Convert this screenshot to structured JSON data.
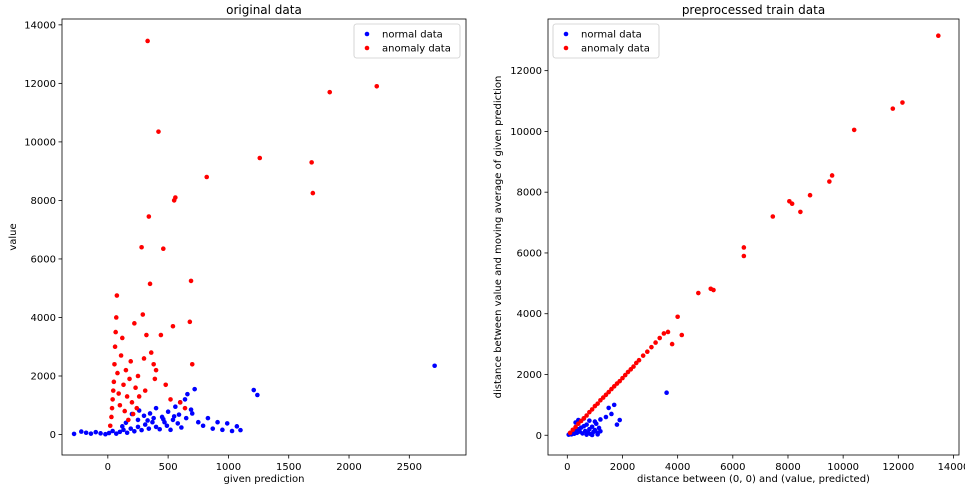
{
  "chart_data": [
    {
      "type": "scatter",
      "title": "original data",
      "xlabel": "given prediction",
      "ylabel": "value",
      "xlim": [
        -380,
        2970
      ],
      "ylim": [
        -700,
        14200
      ],
      "xticks": [
        0,
        500,
        1000,
        1500,
        2000,
        2500
      ],
      "yticks": [
        0,
        2000,
        4000,
        6000,
        8000,
        10000,
        12000,
        14000
      ],
      "legend_position": "top-right",
      "series": [
        {
          "name": "normal data",
          "color": "#0000ff",
          "points": [
            [
              -280,
              20
            ],
            [
              -220,
              100
            ],
            [
              -180,
              60
            ],
            [
              -140,
              30
            ],
            [
              -100,
              80
            ],
            [
              -60,
              40
            ],
            [
              -20,
              10
            ],
            [
              10,
              50
            ],
            [
              40,
              120
            ],
            [
              70,
              30
            ],
            [
              100,
              90
            ],
            [
              130,
              160
            ],
            [
              160,
              60
            ],
            [
              190,
              200
            ],
            [
              220,
              110
            ],
            [
              250,
              260
            ],
            [
              280,
              150
            ],
            [
              310,
              340
            ],
            [
              340,
              200
            ],
            [
              370,
              420
            ],
            [
              400,
              260
            ],
            [
              430,
              180
            ],
            [
              460,
              520
            ],
            [
              490,
              300
            ],
            [
              520,
              160
            ],
            [
              550,
              620
            ],
            [
              580,
              380
            ],
            [
              610,
              240
            ],
            [
              640,
              1200
            ],
            [
              660,
              1380
            ],
            [
              690,
              850
            ],
            [
              720,
              1550
            ],
            [
              750,
              420
            ],
            [
              790,
              300
            ],
            [
              830,
              560
            ],
            [
              870,
              200
            ],
            [
              910,
              420
            ],
            [
              950,
              160
            ],
            [
              990,
              380
            ],
            [
              1030,
              120
            ],
            [
              1070,
              280
            ],
            [
              1100,
              150
            ],
            [
              1210,
              1520
            ],
            [
              1240,
              1350
            ],
            [
              200,
              700
            ],
            [
              260,
              820
            ],
            [
              300,
              640
            ],
            [
              350,
              720
            ],
            [
              400,
              900
            ],
            [
              450,
              600
            ],
            [
              500,
              780
            ],
            [
              560,
              950
            ],
            [
              600,
              1100
            ],
            [
              150,
              400
            ],
            [
              120,
              280
            ],
            [
              250,
              500
            ],
            [
              330,
              480
            ],
            [
              380,
              560
            ],
            [
              470,
              420
            ],
            [
              540,
              500
            ],
            [
              590,
              680
            ],
            [
              650,
              560
            ],
            [
              700,
              720
            ],
            [
              2710,
              2350
            ]
          ]
        },
        {
          "name": "anomaly data",
          "color": "#ff0000",
          "points": [
            [
              20,
              300
            ],
            [
              30,
              600
            ],
            [
              35,
              900
            ],
            [
              40,
              1200
            ],
            [
              45,
              1500
            ],
            [
              50,
              1800
            ],
            [
              55,
              2400
            ],
            [
              60,
              3000
            ],
            [
              65,
              3500
            ],
            [
              70,
              4000
            ],
            [
              75,
              4750
            ],
            [
              80,
              2100
            ],
            [
              90,
              1400
            ],
            [
              100,
              1000
            ],
            [
              110,
              2700
            ],
            [
              120,
              3300
            ],
            [
              130,
              1700
            ],
            [
              140,
              800
            ],
            [
              150,
              2200
            ],
            [
              160,
              1300
            ],
            [
              170,
              500
            ],
            [
              180,
              1900
            ],
            [
              190,
              2500
            ],
            [
              200,
              1100
            ],
            [
              210,
              700
            ],
            [
              220,
              3800
            ],
            [
              230,
              1600
            ],
            [
              240,
              900
            ],
            [
              250,
              2000
            ],
            [
              260,
              1300
            ],
            [
              280,
              6400
            ],
            [
              290,
              4100
            ],
            [
              300,
              2600
            ],
            [
              310,
              1500
            ],
            [
              320,
              3400
            ],
            [
              330,
              13450
            ],
            [
              340,
              7450
            ],
            [
              350,
              5150
            ],
            [
              360,
              2800
            ],
            [
              380,
              2400
            ],
            [
              390,
              1900
            ],
            [
              400,
              2200
            ],
            [
              420,
              10350
            ],
            [
              440,
              3400
            ],
            [
              460,
              6350
            ],
            [
              480,
              1700
            ],
            [
              520,
              1200
            ],
            [
              540,
              3700
            ],
            [
              550,
              8000
            ],
            [
              560,
              8100
            ],
            [
              600,
              1100
            ],
            [
              640,
              900
            ],
            [
              680,
              3850
            ],
            [
              690,
              5250
            ],
            [
              700,
              2400
            ],
            [
              820,
              8800
            ],
            [
              1260,
              9450
            ],
            [
              1690,
              9300
            ],
            [
              1700,
              8250
            ],
            [
              1840,
              11700
            ],
            [
              2230,
              11900
            ]
          ]
        }
      ]
    },
    {
      "type": "scatter",
      "title": "preprocessed train data",
      "xlabel": "distance between (0, 0) and (value, predicted)",
      "ylabel": "distance between value and moving average of given prediction",
      "xlim": [
        -700,
        14200
      ],
      "ylim": [
        -650,
        13700
      ],
      "xticks": [
        0,
        2000,
        4000,
        6000,
        8000,
        10000,
        12000,
        14000
      ],
      "yticks": [
        0,
        2000,
        4000,
        6000,
        8000,
        10000,
        12000
      ],
      "legend_position": "top-left",
      "series": [
        {
          "name": "normal data",
          "color": "#0000ff",
          "points": [
            [
              50,
              20
            ],
            [
              100,
              60
            ],
            [
              150,
              30
            ],
            [
              200,
              100
            ],
            [
              250,
              50
            ],
            [
              300,
              150
            ],
            [
              350,
              80
            ],
            [
              400,
              200
            ],
            [
              450,
              120
            ],
            [
              500,
              250
            ],
            [
              550,
              60
            ],
            [
              600,
              300
            ],
            [
              650,
              140
            ],
            [
              700,
              350
            ],
            [
              750,
              90
            ],
            [
              800,
              200
            ],
            [
              850,
              40
            ],
            [
              900,
              280
            ],
            [
              950,
              110
            ],
            [
              1000,
              170
            ],
            [
              1050,
              380
            ],
            [
              1100,
              80
            ],
            [
              1150,
              240
            ],
            [
              1200,
              130
            ],
            [
              400,
              500
            ],
            [
              600,
              550
            ],
            [
              800,
              480
            ],
            [
              1000,
              450
            ],
            [
              1200,
              520
            ],
            [
              1400,
              600
            ],
            [
              1500,
              900
            ],
            [
              1600,
              700
            ],
            [
              1700,
              1000
            ],
            [
              1800,
              350
            ],
            [
              1900,
              500
            ],
            [
              3600,
              1400
            ],
            [
              700,
              20
            ],
            [
              900,
              10
            ],
            [
              1100,
              30
            ],
            [
              300,
              420
            ]
          ]
        },
        {
          "name": "anomaly data",
          "color": "#ff0000",
          "points": [
            [
              100,
              80
            ],
            [
              200,
              180
            ],
            [
              300,
              270
            ],
            [
              400,
              380
            ],
            [
              500,
              470
            ],
            [
              600,
              560
            ],
            [
              700,
              650
            ],
            [
              800,
              760
            ],
            [
              900,
              850
            ],
            [
              1000,
              960
            ],
            [
              1100,
              1040
            ],
            [
              1200,
              1150
            ],
            [
              1300,
              1240
            ],
            [
              1400,
              1330
            ],
            [
              1500,
              1420
            ],
            [
              1600,
              1520
            ],
            [
              1700,
              1610
            ],
            [
              1800,
              1700
            ],
            [
              1900,
              1780
            ],
            [
              2000,
              1880
            ],
            [
              2100,
              1980
            ],
            [
              2200,
              2080
            ],
            [
              2300,
              2170
            ],
            [
              2400,
              2260
            ],
            [
              2500,
              2380
            ],
            [
              2600,
              2470
            ],
            [
              2750,
              2620
            ],
            [
              2900,
              2750
            ],
            [
              3050,
              2900
            ],
            [
              3200,
              3050
            ],
            [
              3350,
              3200
            ],
            [
              3500,
              3350
            ],
            [
              3650,
              3400
            ],
            [
              3800,
              3000
            ],
            [
              4000,
              3900
            ],
            [
              4150,
              3300
            ],
            [
              4750,
              4680
            ],
            [
              5200,
              4820
            ],
            [
              5300,
              4780
            ],
            [
              6400,
              6180
            ],
            [
              6400,
              5900
            ],
            [
              7450,
              7200
            ],
            [
              8050,
              7700
            ],
            [
              8150,
              7620
            ],
            [
              8450,
              7350
            ],
            [
              8800,
              7900
            ],
            [
              9500,
              8350
            ],
            [
              9600,
              8550
            ],
            [
              10400,
              10050
            ],
            [
              11800,
              10750
            ],
            [
              12150,
              10950
            ],
            [
              13450,
              13150
            ]
          ]
        }
      ]
    }
  ]
}
